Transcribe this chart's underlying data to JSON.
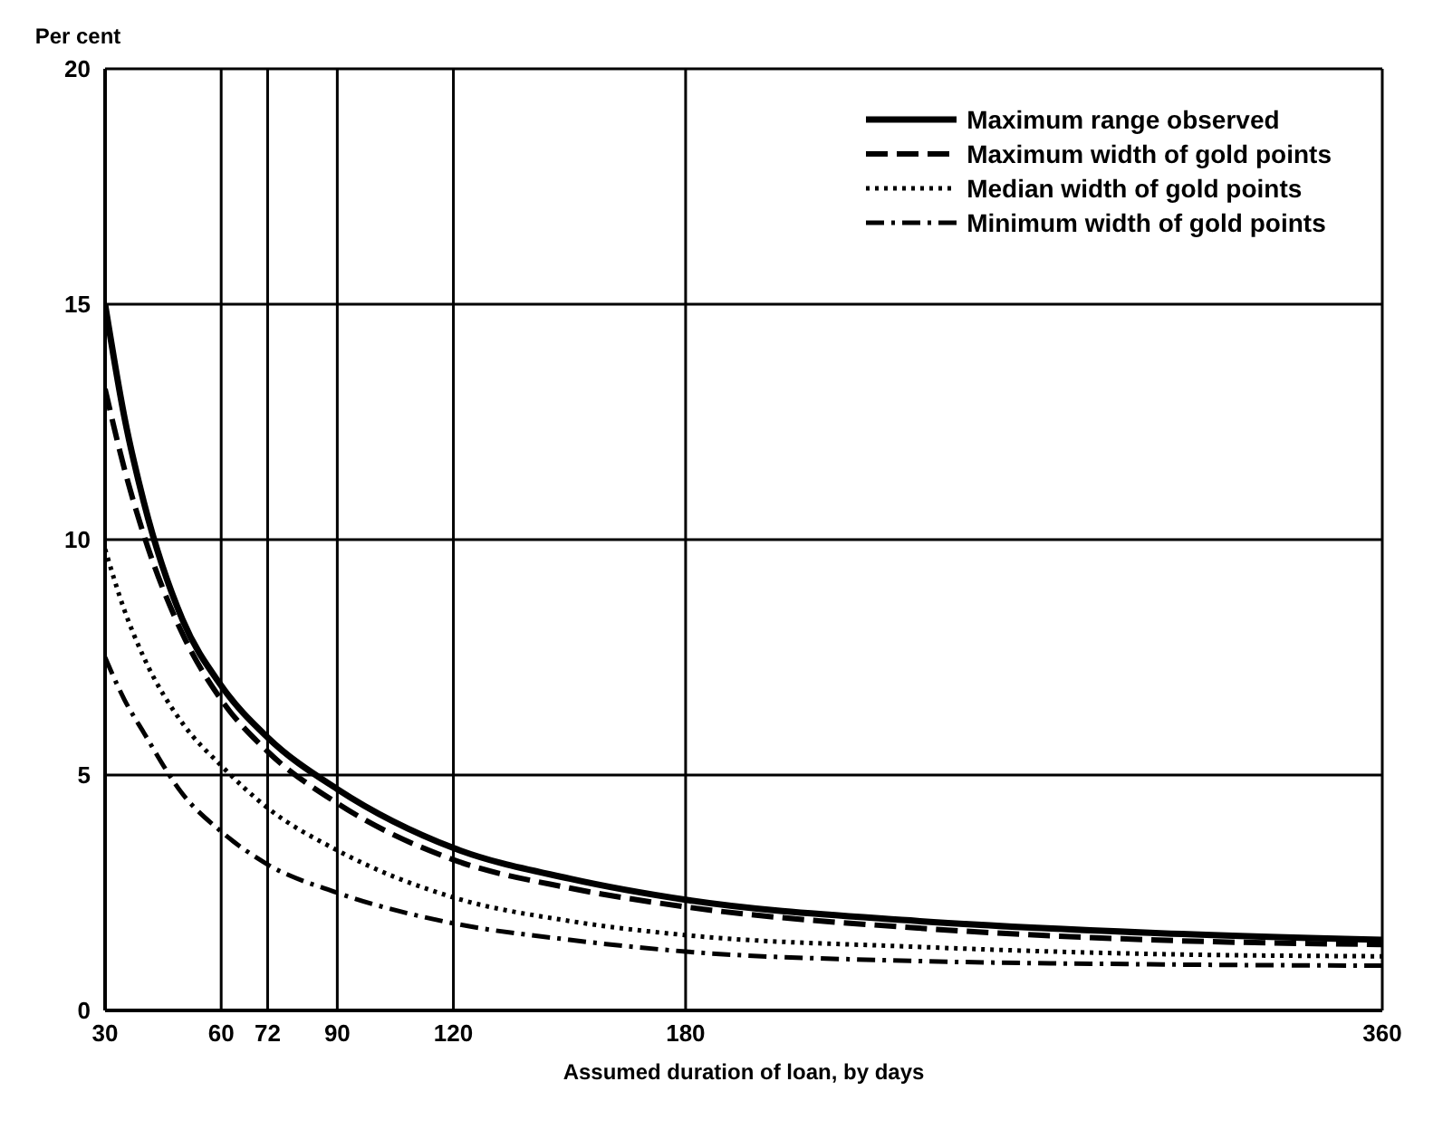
{
  "chart_data": {
    "type": "line",
    "ylabel": "Per cent",
    "xlabel": "Assumed duration of loan, by days",
    "x": [
      30,
      35,
      40,
      50,
      60,
      72,
      90,
      120,
      150,
      180,
      240,
      300,
      360
    ],
    "series": [
      {
        "name": "Maximum range observed",
        "color": "#000000",
        "line_style": "solid",
        "values": [
          15,
          12.6,
          10.8,
          8.3,
          6.9,
          5.8,
          4.7,
          3.45,
          2.8,
          2.35,
          1.9,
          1.65,
          1.5
        ]
      },
      {
        "name": "Maximum width of gold points",
        "color": "#000000",
        "line_style": "dashed",
        "values": [
          13.2,
          11.5,
          10.1,
          8.0,
          6.6,
          5.5,
          4.4,
          3.2,
          2.6,
          2.2,
          1.75,
          1.5,
          1.4
        ]
      },
      {
        "name": "Median width of gold points",
        "color": "#000000",
        "line_style": "dotted",
        "values": [
          9.8,
          8.5,
          7.5,
          6.1,
          5.2,
          4.3,
          3.4,
          2.4,
          1.9,
          1.6,
          1.35,
          1.2,
          1.15
        ]
      },
      {
        "name": "Minimum width of gold points",
        "color": "#000000",
        "line_style": "dashdot",
        "values": [
          7.5,
          6.6,
          5.9,
          4.6,
          3.8,
          3.1,
          2.5,
          1.85,
          1.5,
          1.25,
          1.05,
          0.98,
          0.95
        ]
      }
    ],
    "xlim": [
      30,
      360
    ],
    "xticks": [
      30,
      60,
      72,
      90,
      120,
      180,
      360
    ],
    "ylim": [
      0,
      20
    ],
    "yticks": [
      0,
      5,
      10,
      15,
      20
    ],
    "grid": true,
    "legend": "top right",
    "marker": "none"
  }
}
